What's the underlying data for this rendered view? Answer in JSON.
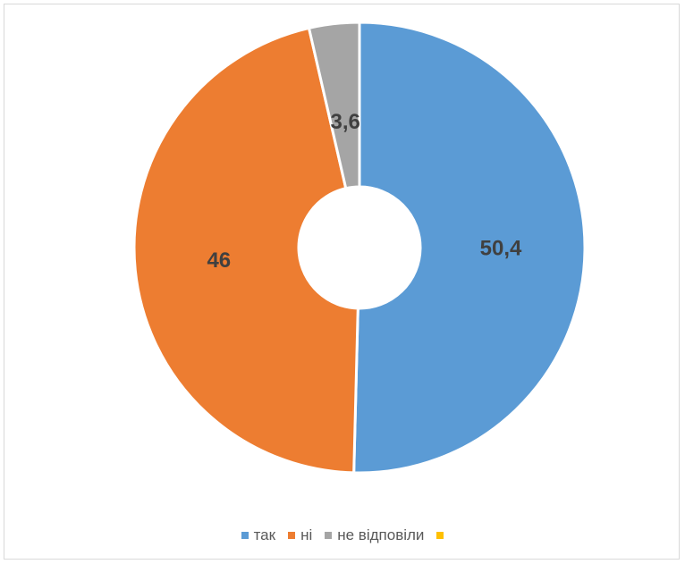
{
  "chart_data": {
    "type": "pie",
    "variant": "doughnut",
    "categories": [
      "так",
      "ні",
      "не відповіли",
      ""
    ],
    "values": [
      50.4,
      46,
      3.6,
      0
    ],
    "data_labels": [
      "50,4",
      "46",
      "3,6",
      ""
    ],
    "colors": [
      "#5b9bd5",
      "#ed7d31",
      "#a5a5a5",
      "#ffc000"
    ],
    "legend_position": "bottom",
    "title": ""
  }
}
